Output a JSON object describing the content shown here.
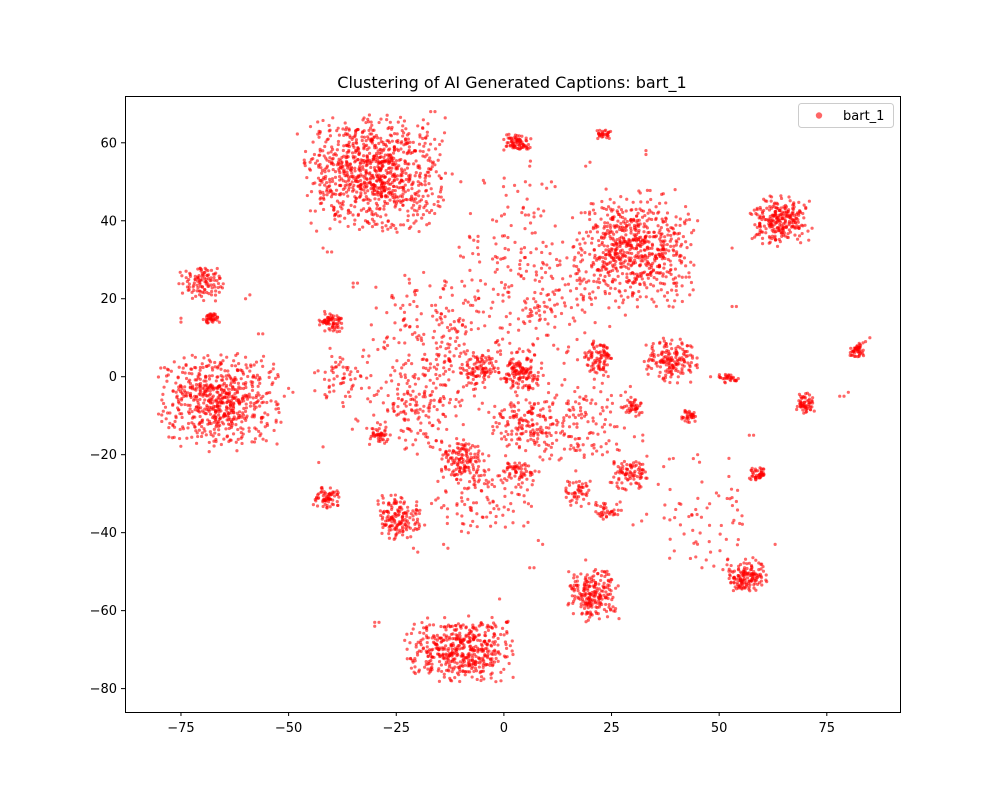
{
  "chart_data": {
    "type": "scatter",
    "title": "Clustering of AI Generated Captions: bart_1",
    "xlabel": "",
    "ylabel": "",
    "xlim": [
      -88,
      92
    ],
    "ylim": [
      -86,
      72
    ],
    "x_ticks": [
      -75,
      -50,
      -25,
      0,
      25,
      50,
      75
    ],
    "x_tick_labels": [
      "−75",
      "−50",
      "−25",
      "0",
      "25",
      "50",
      "75"
    ],
    "y_ticks": [
      -80,
      -60,
      -40,
      -20,
      0,
      20,
      40,
      60
    ],
    "y_tick_labels": [
      "−80",
      "−60",
      "−40",
      "−20",
      "0",
      "20",
      "40",
      "60"
    ],
    "grid": false,
    "legend_position": "top-right",
    "series": [
      {
        "name": "bart_1",
        "color": "#ff0000",
        "opacity": 0.6,
        "marker": "circle",
        "clusters": [
          {
            "center": [
              -30,
              52
            ],
            "spread": [
              7.5,
              7.0
            ],
            "count": 950
          },
          {
            "center": [
              30,
              33
            ],
            "spread": [
              6.5,
              7.0
            ],
            "count": 700
          },
          {
            "center": [
              -66,
              -6
            ],
            "spread": [
              6.5,
              5.5
            ],
            "count": 650
          },
          {
            "center": [
              -10,
              -70
            ],
            "spread": [
              6.0,
              3.8
            ],
            "count": 500
          },
          {
            "center": [
              64,
              40
            ],
            "spread": [
              3.2,
              3.0
            ],
            "count": 260
          },
          {
            "center": [
              -70,
              24
            ],
            "spread": [
              2.5,
              2.2
            ],
            "count": 110
          },
          {
            "center": [
              21,
              -56
            ],
            "spread": [
              2.8,
              3.3
            ],
            "count": 220
          },
          {
            "center": [
              56,
              -51
            ],
            "spread": [
              2.3,
              2.0
            ],
            "count": 150
          },
          {
            "center": [
              39,
              4
            ],
            "spread": [
              3.0,
              2.7
            ],
            "count": 170
          },
          {
            "center": [
              -24,
              -36
            ],
            "spread": [
              2.6,
              2.6
            ],
            "count": 160
          },
          {
            "center": [
              3,
              60
            ],
            "spread": [
              1.6,
              1.2
            ],
            "count": 80
          },
          {
            "center": [
              -40,
              14
            ],
            "spread": [
              1.4,
              1.4
            ],
            "count": 70
          },
          {
            "center": [
              -41,
              -31
            ],
            "spread": [
              1.5,
              1.3
            ],
            "count": 70
          },
          {
            "center": [
              70,
              -7
            ],
            "spread": [
              1.1,
              1.3
            ],
            "count": 60
          },
          {
            "center": [
              82,
              7
            ],
            "spread": [
              0.9,
              1.0
            ],
            "count": 50
          },
          {
            "center": [
              -68,
              15
            ],
            "spread": [
              1.0,
              0.8
            ],
            "count": 40
          },
          {
            "center": [
              23,
              62
            ],
            "spread": [
              0.9,
              0.6
            ],
            "count": 30
          },
          {
            "center": [
              59,
              -25
            ],
            "spread": [
              1.0,
              0.9
            ],
            "count": 45
          },
          {
            "center": [
              -10,
              -21
            ],
            "spread": [
              2.5,
              2.5
            ],
            "count": 130
          },
          {
            "center": [
              4,
              1
            ],
            "spread": [
              2.5,
              2.5
            ],
            "count": 140
          },
          {
            "center": [
              4,
              -12
            ],
            "spread": [
              3.5,
              3.0
            ],
            "count": 120
          },
          {
            "center": [
              -6,
              2
            ],
            "spread": [
              2.0,
              2.0
            ],
            "count": 80
          },
          {
            "center": [
              29,
              -25
            ],
            "spread": [
              2.4,
              2.2
            ],
            "count": 90
          },
          {
            "center": [
              22,
              5
            ],
            "spread": [
              1.8,
              2.2
            ],
            "count": 90
          },
          {
            "center": [
              24,
              -34
            ],
            "spread": [
              1.5,
              1.2
            ],
            "count": 40
          },
          {
            "center": [
              30,
              -8
            ],
            "spread": [
              1.2,
              1.0
            ],
            "count": 40
          },
          {
            "center": [
              -29,
              -15
            ],
            "spread": [
              1.2,
              1.0
            ],
            "count": 40
          },
          {
            "center": [
              43,
              -10
            ],
            "spread": [
              1.0,
              0.9
            ],
            "count": 35
          },
          {
            "center": [
              4,
              -24
            ],
            "spread": [
              2.0,
              1.2
            ],
            "count": 55
          },
          {
            "center": [
              17,
              -29
            ],
            "spread": [
              2.0,
              2.0
            ],
            "count": 50
          },
          {
            "center": [
              52,
              -0.5
            ],
            "spread": [
              1.2,
              0.7
            ],
            "count": 30
          },
          {
            "center": [
              -38,
              0
            ],
            "spread": [
              3.5,
              4.0
            ],
            "count": 60
          },
          {
            "center": [
              -5,
              -30
            ],
            "spread": [
              6.0,
              5.0
            ],
            "count": 120
          },
          {
            "center": [
              -15,
              10
            ],
            "spread": [
              8.0,
              8.0
            ],
            "count": 220
          },
          {
            "center": [
              10,
              20
            ],
            "spread": [
              8.0,
              8.0
            ],
            "count": 160
          },
          {
            "center": [
              -20,
              -8
            ],
            "spread": [
              7.0,
              6.0
            ],
            "count": 180
          },
          {
            "center": [
              15,
              -12
            ],
            "spread": [
              8.0,
              6.0
            ],
            "count": 180
          },
          {
            "center": [
              0,
              35
            ],
            "spread": [
              7.0,
              10.0
            ],
            "count": 80
          },
          {
            "center": [
              45,
              -35
            ],
            "spread": [
              6.0,
              8.0
            ],
            "count": 60
          }
        ],
        "scattered_points": [
          [
            -30,
            -63
          ],
          [
            -29,
            -63
          ],
          [
            -30,
            -64
          ],
          [
            -75,
            15
          ],
          [
            -75,
            14
          ],
          [
            -56,
            11
          ],
          [
            -57,
            11
          ],
          [
            -23,
            26
          ],
          [
            -22,
            25
          ],
          [
            -42,
            33
          ],
          [
            -41,
            32
          ],
          [
            -40,
            32
          ],
          [
            -17,
            68
          ],
          [
            -16,
            68
          ],
          [
            -6,
            36
          ],
          [
            -8,
            36
          ],
          [
            -7,
            35
          ],
          [
            7,
            42
          ],
          [
            8,
            43
          ],
          [
            7,
            41
          ],
          [
            33,
            57
          ],
          [
            33,
            58
          ],
          [
            53,
            33
          ],
          [
            54,
            18
          ],
          [
            53,
            18
          ],
          [
            63,
            -43
          ],
          [
            -23,
            13
          ],
          [
            -24,
            12
          ],
          [
            -35,
            24
          ],
          [
            -34,
            24
          ],
          [
            -35,
            23
          ],
          [
            79,
            -5
          ],
          [
            78,
            -5
          ],
          [
            80,
            -4
          ],
          [
            85,
            10
          ],
          [
            84,
            9
          ],
          [
            -1,
            -57
          ],
          [
            -5,
            -36
          ],
          [
            -4,
            -36
          ],
          [
            8,
            -42
          ],
          [
            9,
            -43
          ],
          [
            7,
            -49
          ],
          [
            6,
            -49
          ],
          [
            19,
            -47
          ],
          [
            46,
            -49
          ],
          [
            47,
            -47
          ],
          [
            48,
            -45
          ],
          [
            54,
            -32
          ],
          [
            53,
            -31
          ],
          [
            57,
            -15
          ],
          [
            58,
            -15
          ],
          [
            50,
            0
          ],
          [
            48,
            0
          ],
          [
            -42,
            -18
          ],
          [
            -43,
            -22
          ],
          [
            -20,
            -45
          ],
          [
            -21,
            -44
          ],
          [
            -14,
            -43
          ],
          [
            -13,
            -44
          ],
          [
            30,
            -38
          ],
          [
            32,
            -37
          ],
          [
            41,
            -38
          ],
          [
            45,
            -20
          ],
          [
            44,
            -21
          ],
          [
            46,
            -27
          ],
          [
            -50,
            -3
          ],
          [
            -49,
            -4
          ],
          [
            -51,
            -5
          ],
          [
            -10,
            50
          ],
          [
            -12,
            52
          ],
          [
            5,
            50
          ],
          [
            6,
            54
          ],
          [
            20,
            55
          ],
          [
            19,
            54
          ],
          [
            38,
            42
          ],
          [
            40,
            41
          ],
          [
            45,
            40
          ],
          [
            -45,
            55
          ],
          [
            -44,
            57
          ],
          [
            -60,
            20
          ],
          [
            -59,
            21
          ],
          [
            -60,
            5
          ],
          [
            -58,
            3
          ],
          [
            -55,
            -12
          ],
          [
            -62,
            -19
          ]
        ]
      }
    ]
  }
}
